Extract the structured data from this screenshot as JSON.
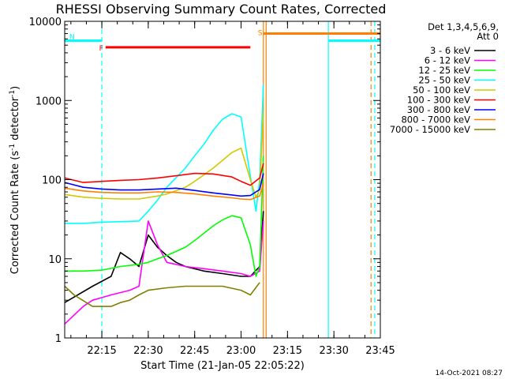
{
  "chart_data": {
    "type": "line",
    "title": "RHESSI Observing Summary Count Rates, Corrected",
    "xlabel": "Start Time (21-Jan-05 22:05:22)",
    "ylabel_main": "Corrected Count Rate (s",
    "ylabel_sup1": "-1",
    "ylabel_mid": " detector",
    "ylabel_sup2": "-1",
    "ylabel_end": ")",
    "ylog": true,
    "ylim": [
      1,
      10000
    ],
    "xlim": [
      22.05,
      23.75
    ],
    "y_ticks": [
      {
        "v": 1,
        "label": "1"
      },
      {
        "v": 10,
        "label": "10"
      },
      {
        "v": 100,
        "label": "100"
      },
      {
        "v": 1000,
        "label": "1000"
      },
      {
        "v": 10000,
        "label": "10000"
      }
    ],
    "x_ticks": [
      {
        "v": 22.25,
        "label": "22:15"
      },
      {
        "v": 22.5,
        "label": "22:30"
      },
      {
        "v": 22.75,
        "label": "22:45"
      },
      {
        "v": 23.0,
        "label": "23:00"
      },
      {
        "v": 23.25,
        "label": "23:15"
      },
      {
        "v": 23.5,
        "label": "23:30"
      },
      {
        "v": 23.75,
        "label": "23:45"
      }
    ],
    "legend_header": [
      "Det 1,3,4,5,6,9,",
      "Att 0"
    ],
    "legend_placement": "right",
    "date_stamp": "14-Oct-2021 08:27",
    "series": [
      {
        "name": "3 - 6 keV",
        "color": "#000000",
        "x": [
          22.05,
          22.2,
          22.3,
          22.35,
          22.4,
          22.45,
          22.5,
          22.55,
          22.6,
          22.65,
          22.7,
          22.8,
          22.9,
          23.0,
          23.05,
          23.1,
          23.12
        ],
        "y": [
          2.8,
          4.5,
          6,
          12,
          10,
          8,
          20,
          14,
          11,
          9,
          8,
          7,
          6.5,
          6,
          6,
          8,
          40
        ]
      },
      {
        "name": "6 - 12 keV",
        "color": "#ff00ff",
        "x": [
          22.05,
          22.15,
          22.2,
          22.3,
          22.4,
          22.45,
          22.5,
          22.55,
          22.6,
          22.7,
          22.8,
          22.9,
          23.0,
          23.05,
          23.1,
          23.12
        ],
        "y": [
          1.5,
          2.5,
          3,
          3.5,
          4,
          4.5,
          30,
          15,
          9,
          8,
          7.5,
          7,
          6.5,
          6,
          7,
          30
        ]
      },
      {
        "name": "12 - 25 keV",
        "color": "#00ff00",
        "x": [
          22.05,
          22.15,
          22.25,
          22.35,
          22.45,
          22.5,
          22.55,
          22.6,
          22.7,
          22.75,
          22.8,
          22.85,
          22.9,
          22.95,
          23.0,
          23.05,
          23.08,
          23.1,
          23.12
        ],
        "y": [
          7,
          7,
          7.2,
          8,
          8.5,
          9,
          10,
          11,
          14,
          17,
          21,
          26,
          31,
          35,
          33,
          15,
          6,
          8,
          200
        ]
      },
      {
        "name": "25 - 50 keV",
        "color": "#00ffff",
        "x": [
          22.05,
          22.15,
          22.25,
          22.35,
          22.45,
          22.5,
          22.55,
          22.6,
          22.7,
          22.75,
          22.8,
          22.85,
          22.9,
          22.95,
          23.0,
          23.05,
          23.08,
          23.1,
          23.12
        ],
        "y": [
          28,
          28,
          29,
          29.5,
          30,
          40,
          55,
          80,
          140,
          200,
          280,
          420,
          580,
          680,
          620,
          110,
          40,
          100,
          1600
        ]
      },
      {
        "name": "50 - 100 keV",
        "color": "#d4c800",
        "x": [
          22.05,
          22.15,
          22.25,
          22.35,
          22.45,
          22.55,
          22.6,
          22.7,
          22.75,
          22.8,
          22.85,
          22.9,
          22.95,
          23.0,
          23.05,
          23.08,
          23.1,
          23.12
        ],
        "y": [
          65,
          60,
          58,
          57,
          57,
          62,
          66,
          80,
          95,
          115,
          140,
          175,
          220,
          250,
          100,
          60,
          75,
          700
        ]
      },
      {
        "name": "100 - 300 keV",
        "color": "#ff0000",
        "x": [
          22.05,
          22.15,
          22.25,
          22.35,
          22.45,
          22.55,
          22.65,
          22.75,
          22.85,
          22.95,
          23.0,
          23.05,
          23.1,
          23.12
        ],
        "y": [
          105,
          92,
          95,
          98,
          100,
          105,
          112,
          120,
          118,
          108,
          95,
          85,
          105,
          160
        ]
      },
      {
        "name": "300 - 800 keV",
        "color": "#0000ff",
        "x": [
          22.05,
          22.15,
          22.25,
          22.35,
          22.45,
          22.55,
          22.65,
          22.75,
          22.85,
          22.95,
          23.0,
          23.05,
          23.1,
          23.12
        ],
        "y": [
          92,
          80,
          76,
          74,
          74,
          76,
          78,
          73,
          68,
          64,
          62,
          63,
          75,
          120
        ]
      },
      {
        "name": "800 - 7000 keV",
        "color": "#ff8000",
        "x": [
          22.05,
          22.15,
          22.25,
          22.35,
          22.45,
          22.55,
          22.65,
          22.75,
          22.85,
          22.95,
          23.0,
          23.05,
          23.1,
          23.12
        ],
        "y": [
          78,
          72,
          69,
          68,
          68,
          70,
          69,
          66,
          62,
          59,
          57,
          56,
          62,
          90
        ]
      },
      {
        "name": "7000 - 15000 keV",
        "color": "#808000",
        "x": [
          22.05,
          22.1,
          22.2,
          22.3,
          22.35,
          22.4,
          22.45,
          22.5,
          22.6,
          22.7,
          22.8,
          22.9,
          23.0,
          23.05,
          23.1
        ],
        "y": [
          4.5,
          3.5,
          2.5,
          2.5,
          2.8,
          3,
          3.5,
          4,
          4.3,
          4.5,
          4.5,
          4.5,
          4,
          3.5,
          5
        ]
      }
    ],
    "flags": [
      {
        "label": "N",
        "color": "#00ffff",
        "x_start": 22.05,
        "x_end": 22.25,
        "y": 5700
      },
      {
        "label": "F",
        "color": "#ff0000",
        "x_start": 22.27,
        "x_end": 23.05,
        "y": 4700
      },
      {
        "label": "S",
        "color": "#ff8000",
        "x_start": 23.12,
        "x_end": 23.75,
        "y": 7000
      },
      {
        "label": "",
        "color": "#00ffff",
        "x_start": 23.47,
        "x_end": 23.75,
        "y": 5700
      }
    ],
    "vlines": [
      {
        "x": 22.25,
        "color": "#00ffff",
        "dashed": true
      },
      {
        "x": 23.12,
        "color": "#ff8000",
        "dashed": false
      },
      {
        "x": 23.135,
        "color": "#ff8000",
        "dashed": false
      },
      {
        "x": 23.47,
        "color": "#00ffff",
        "dashed": false
      },
      {
        "x": 23.7,
        "color": "#ff8000",
        "dashed": true
      },
      {
        "x": 23.72,
        "color": "#00ffff",
        "dashed": true
      }
    ]
  }
}
